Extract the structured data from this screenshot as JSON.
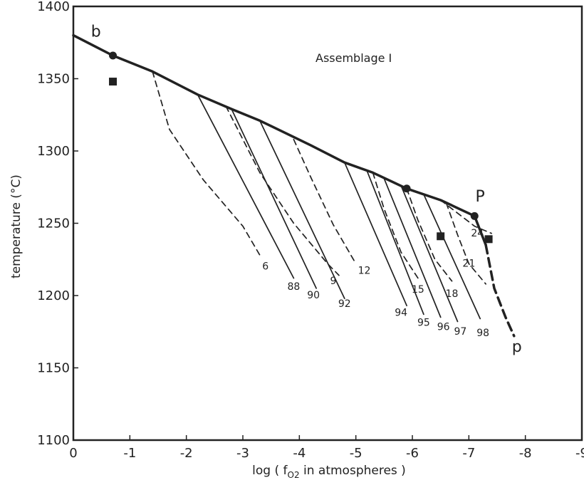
{
  "chart_data": {
    "type": "line",
    "title": "",
    "annotation": "Assemblage I",
    "xlabel": "log ( f",
    "xlabel_sub": "O2",
    "xlabel_tail": " in atmospheres )",
    "ylabel": "temperature (°C)",
    "xlim": [
      0,
      -9
    ],
    "ylim": [
      1100,
      1400
    ],
    "x_ticks": [
      0,
      -1,
      -2,
      -3,
      -4,
      -5,
      -6,
      -7,
      -8,
      -9
    ],
    "x_tick_labels": [
      "0",
      "-1",
      "-2",
      "-3",
      "-4",
      "-5",
      "-6",
      "-7",
      "-8",
      "-9"
    ],
    "y_ticks": [
      1100,
      1150,
      1200,
      1250,
      1300,
      1350,
      1400
    ],
    "y_tick_labels": [
      "1100",
      "1150",
      "1200",
      "1250",
      "1300",
      "1350",
      "1400"
    ],
    "grid": false,
    "series": [
      {
        "label": "b",
        "style": "thick-solid",
        "x": [
          0.0,
          -0.7,
          -1.4,
          -2.2,
          -2.8,
          -3.3,
          -4.2,
          -4.8,
          -5.3,
          -5.9,
          -6.5,
          -7.1,
          -7.3
        ],
        "y": [
          1380,
          1366,
          1355,
          1339,
          1329,
          1321,
          1304,
          1292,
          1285,
          1274,
          1266,
          1255,
          1235
        ]
      },
      {
        "label": "p",
        "style": "thick-dashed",
        "x": [
          -7.3,
          -7.45,
          -7.65,
          -7.8
        ],
        "y": [
          1235,
          1205,
          1185,
          1172
        ]
      },
      {
        "label": "88",
        "style": "solid",
        "x": [
          -2.2,
          -3.9
        ],
        "y": [
          1339,
          1212
        ]
      },
      {
        "label": "90",
        "style": "solid",
        "x": [
          -2.8,
          -4.3
        ],
        "y": [
          1329,
          1205
        ]
      },
      {
        "label": "92",
        "style": "solid",
        "x": [
          -3.3,
          -4.8
        ],
        "y": [
          1321,
          1198
        ]
      },
      {
        "label": "94",
        "style": "solid",
        "x": [
          -4.8,
          -5.9
        ],
        "y": [
          1292,
          1193
        ]
      },
      {
        "label": "95",
        "style": "solid",
        "x": [
          -5.2,
          -6.2
        ],
        "y": [
          1286,
          1187
        ]
      },
      {
        "label": "96",
        "style": "solid",
        "x": [
          -5.5,
          -6.5
        ],
        "y": [
          1281,
          1185
        ]
      },
      {
        "label": "97",
        "style": "solid",
        "x": [
          -5.8,
          -6.8
        ],
        "y": [
          1276,
          1182
        ]
      },
      {
        "label": "98",
        "style": "solid",
        "x": [
          -6.2,
          -7.2
        ],
        "y": [
          1270,
          1184
        ]
      },
      {
        "label": "6",
        "style": "dashed",
        "x": [
          -1.4,
          -1.7,
          -2.3,
          -3.0,
          -3.3
        ],
        "y": [
          1355,
          1315,
          1280,
          1248,
          1228
        ]
      },
      {
        "label": "9",
        "style": "dashed",
        "x": [
          -2.7,
          -3.3,
          -3.9,
          -4.5,
          -4.7
        ],
        "y": [
          1331,
          1285,
          1250,
          1222,
          1214
        ]
      },
      {
        "label": "12",
        "style": "dashed",
        "x": [
          -3.9,
          -4.2,
          -4.6,
          -5.0
        ],
        "y": [
          1308,
          1282,
          1249,
          1222
        ]
      },
      {
        "label": "15",
        "style": "dashed",
        "x": [
          -5.3,
          -5.5,
          -5.8,
          -6.1
        ],
        "y": [
          1285,
          1260,
          1230,
          1212
        ]
      },
      {
        "label": "18",
        "style": "dashed",
        "x": [
          -5.9,
          -6.1,
          -6.4,
          -6.7
        ],
        "y": [
          1274,
          1252,
          1225,
          1210
        ]
      },
      {
        "label": "21",
        "style": "dashed",
        "x": [
          -6.6,
          -6.8,
          -7.0,
          -7.3
        ],
        "y": [
          1264,
          1242,
          1222,
          1208
        ]
      },
      {
        "label": "24",
        "style": "dashed",
        "x": [
          -6.5,
          -6.8,
          -7.1,
          -7.4
        ],
        "y": [
          1266,
          1257,
          1248,
          1243
        ]
      }
    ],
    "points": {
      "circles": [
        {
          "x": -0.7,
          "y": 1366
        },
        {
          "x": -5.9,
          "y": 1274
        },
        {
          "x": -7.1,
          "y": 1255
        }
      ],
      "squares": [
        {
          "x": -0.7,
          "y": 1348
        },
        {
          "x": -6.5,
          "y": 1241
        },
        {
          "x": -7.35,
          "y": 1239
        }
      ]
    },
    "curve_labels": [
      {
        "text": "b",
        "x": -0.4,
        "y": 1379,
        "size": "big"
      },
      {
        "text": "P",
        "x": -7.2,
        "y": 1265,
        "size": "big"
      },
      {
        "text": "p",
        "x": -7.85,
        "y": 1161,
        "size": "big"
      },
      {
        "text": "6",
        "x": -3.4,
        "y": 1218
      },
      {
        "text": "88",
        "x": -3.9,
        "y": 1204
      },
      {
        "text": "90",
        "x": -4.25,
        "y": 1198
      },
      {
        "text": "9",
        "x": -4.6,
        "y": 1208
      },
      {
        "text": "92",
        "x": -4.8,
        "y": 1192
      },
      {
        "text": "12",
        "x": -5.15,
        "y": 1215
      },
      {
        "text": "94",
        "x": -5.8,
        "y": 1186
      },
      {
        "text": "15",
        "x": -6.1,
        "y": 1202
      },
      {
        "text": "95",
        "x": -6.2,
        "y": 1179
      },
      {
        "text": "18",
        "x": -6.7,
        "y": 1199
      },
      {
        "text": "96",
        "x": -6.55,
        "y": 1176
      },
      {
        "text": "97",
        "x": -6.85,
        "y": 1173
      },
      {
        "text": "98",
        "x": -7.25,
        "y": 1172
      },
      {
        "text": "21",
        "x": -7.0,
        "y": 1220
      },
      {
        "text": "24",
        "x": -7.15,
        "y": 1241
      }
    ]
  }
}
